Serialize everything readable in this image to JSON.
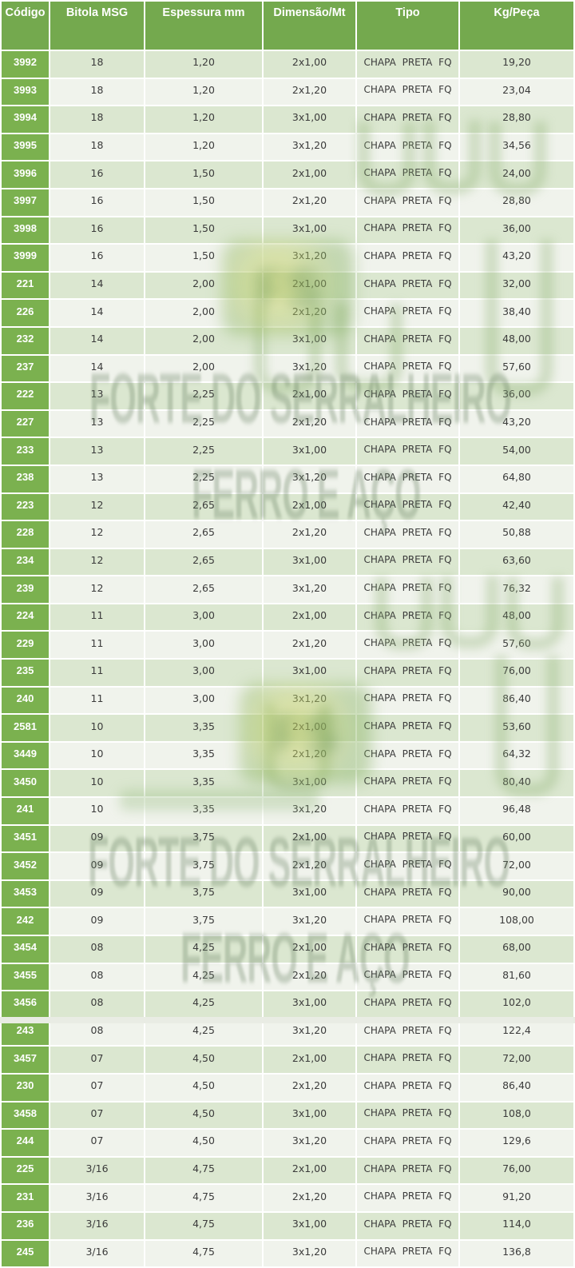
{
  "table": {
    "columns": [
      "Código",
      "Bitola MSG",
      "Espessura mm",
      "Dimensão/Mt",
      "Tipo",
      "Kg/Peça"
    ],
    "col_keys": [
      "codigo",
      "bitola-msg",
      "espessura-mm",
      "dimensao-mt",
      "tipo",
      "kg-peca"
    ],
    "rows": [
      [
        "3992",
        "18",
        "1,20",
        "2x1,00",
        "CHAPA PRETA FQ",
        "19,20"
      ],
      [
        "3993",
        "18",
        "1,20",
        "2x1,20",
        "CHAPA PRETA FQ",
        "23,04"
      ],
      [
        "3994",
        "18",
        "1,20",
        "3x1,00",
        "CHAPA PRETA FQ",
        "28,80"
      ],
      [
        "3995",
        "18",
        "1,20",
        "3x1,20",
        "CHAPA PRETA FQ",
        "34,56"
      ],
      [
        "3996",
        "16",
        "1,50",
        "2x1,00",
        "CHAPA PRETA FQ",
        "24,00"
      ],
      [
        "3997",
        "16",
        "1,50",
        "2x1,20",
        "CHAPA PRETA FQ",
        "28,80"
      ],
      [
        "3998",
        "16",
        "1,50",
        "3x1,00",
        "CHAPA PRETA FQ",
        "36,00"
      ],
      [
        "3999",
        "16",
        "1,50",
        "3x1,20",
        "CHAPA PRETA FQ",
        "43,20"
      ],
      [
        "221",
        "14",
        "2,00",
        "2x1,00",
        "CHAPA PRETA FQ",
        "32,00"
      ],
      [
        "226",
        "14",
        "2,00",
        "2x1,20",
        "CHAPA PRETA FQ",
        "38,40"
      ],
      [
        "232",
        "14",
        "2,00",
        "3x1,00",
        "CHAPA PRETA FQ",
        "48,00"
      ],
      [
        "237",
        "14",
        "2,00",
        "3x1,20",
        "CHAPA PRETA FQ",
        "57,60"
      ],
      [
        "222",
        "13",
        "2,25",
        "2x1,00",
        "CHAPA PRETA FQ",
        "36,00"
      ],
      [
        "227",
        "13",
        "2,25",
        "2x1,20",
        "CHAPA PRETA FQ",
        "43,20"
      ],
      [
        "233",
        "13",
        "2,25",
        "3x1,00",
        "CHAPA PRETA FQ",
        "54,00"
      ],
      [
        "238",
        "13",
        "2,25",
        "3x1,20",
        "CHAPA PRETA FQ",
        "64,80"
      ],
      [
        "223",
        "12",
        "2,65",
        "2x1,00",
        "CHAPA PRETA FQ",
        "42,40"
      ],
      [
        "228",
        "12",
        "2,65",
        "2x1,20",
        "CHAPA PRETA FQ",
        "50,88"
      ],
      [
        "234",
        "12",
        "2,65",
        "3x1,00",
        "CHAPA PRETA FQ",
        "63,60"
      ],
      [
        "239",
        "12",
        "2,65",
        "3x1,20",
        "CHAPA PRETA FQ",
        "76,32"
      ],
      [
        "224",
        "11",
        "3,00",
        "2x1,00",
        "CHAPA PRETA FQ",
        "48,00"
      ],
      [
        "229",
        "11",
        "3,00",
        "2x1,20",
        "CHAPA PRETA FQ",
        "57,60"
      ],
      [
        "235",
        "11",
        "3,00",
        "3x1,00",
        "CHAPA PRETA FQ",
        "76,00"
      ],
      [
        "240",
        "11",
        "3,00",
        "3x1,20",
        "CHAPA PRETA FQ",
        "86,40"
      ],
      [
        "2581",
        "10",
        "3,35",
        "2x1,00",
        "CHAPA PRETA FQ",
        "53,60"
      ],
      [
        "3449",
        "10",
        "3,35",
        "2x1,20",
        "CHAPA PRETA FQ",
        "64,32"
      ],
      [
        "3450",
        "10",
        "3,35",
        "3x1,00",
        "CHAPA PRETA FQ",
        "80,40"
      ],
      [
        "241",
        "10",
        "3,35",
        "3x1,20",
        "CHAPA PRETA FQ",
        "96,48"
      ],
      [
        "3451",
        "09",
        "3,75",
        "2x1,00",
        "CHAPA PRETA FQ",
        "60,00"
      ],
      [
        "3452",
        "09",
        "3,75",
        "2x1,20",
        "CHAPA PRETA FQ",
        "72,00"
      ],
      [
        "3453",
        "09",
        "3,75",
        "3x1,00",
        "CHAPA PRETA FQ",
        "90,00"
      ],
      [
        "242",
        "09",
        "3,75",
        "3x1,20",
        "CHAPA PRETA FQ",
        "108,00"
      ],
      [
        "3454",
        "08",
        "4,25",
        "2x1,00",
        "CHAPA PRETA FQ",
        "68,00"
      ],
      [
        "3455",
        "08",
        "4,25",
        "2x1,20",
        "CHAPA PRETA FQ",
        "81,60"
      ],
      [
        "3456",
        "08",
        "4,25",
        "3x1,00",
        "CHAPA PRETA FQ",
        "102,0"
      ],
      [
        "243",
        "08",
        "4,25",
        "3x1,20",
        "CHAPA PRETA FQ",
        "122,4"
      ],
      [
        "3457",
        "07",
        "4,50",
        "2x1,00",
        "CHAPA PRETA FQ",
        "72,00"
      ],
      [
        "230",
        "07",
        "4,50",
        "2x1,20",
        "CHAPA PRETA FQ",
        "86,40"
      ],
      [
        "3458",
        "07",
        "4,50",
        "3x1,00",
        "CHAPA PRETA FQ",
        "108,0"
      ],
      [
        "244",
        "07",
        "4,50",
        "3x1,20",
        "CHAPA PRETA FQ",
        "129,6"
      ],
      [
        "225",
        "3/16",
        "4,75",
        "2x1,00",
        "CHAPA PRETA FQ",
        "76,00"
      ],
      [
        "231",
        "3/16",
        "4,75",
        "2x1,20",
        "CHAPA PRETA FQ",
        "91,20"
      ],
      [
        "236",
        "3/16",
        "4,75",
        "3x1,00",
        "CHAPA PRETA FQ",
        "114,0"
      ],
      [
        "245",
        "3/16",
        "4,75",
        "3x1,20",
        "CHAPA PRETA FQ",
        "136,8"
      ]
    ]
  },
  "watermark": {
    "line1": "FORTE DO SERRALHEIRO",
    "line2": "FERRO E AÇO",
    "monogram": "FS"
  },
  "colors": {
    "header_green": "#74a94e",
    "code_col_green": "#7bb14f",
    "row_dark": "#dbe7d0",
    "row_light": "#f0f3ec",
    "text_dark": "#3b3b3b",
    "watermark_green": "rgba(106,130,100,0.33)"
  }
}
